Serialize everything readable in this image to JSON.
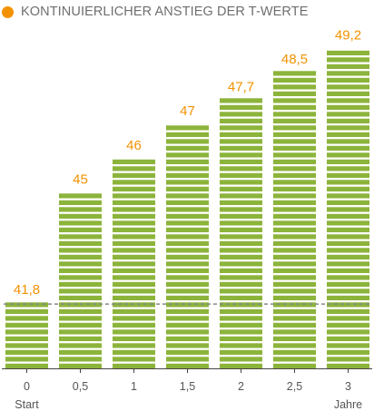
{
  "colors": {
    "bar": "#8cb43b",
    "bar_gap": "#ffffff",
    "accent": "#f39200",
    "baseline": "#888888",
    "axis": "#444444",
    "text": "#555555"
  },
  "legend_dot_color": "#f39200",
  "chart_data": {
    "type": "bar",
    "title": "KONTINUIERLICHER ANSTIEG DER T-WERTE",
    "categories": [
      "0",
      "0,5",
      "1",
      "1,5",
      "2",
      "2,5",
      "3"
    ],
    "values": [
      41.8,
      45,
      46,
      47,
      47.7,
      48.5,
      49.2
    ],
    "value_labels": [
      "41,8",
      "45",
      "46",
      "47",
      "47,7",
      "48,5",
      "49,2"
    ],
    "x_sublabels": {
      "first": "Start",
      "last": "Jahre"
    },
    "ylim": [
      39.8,
      49.5
    ],
    "reference_line": 41.8,
    "grid": false,
    "legend": "none"
  }
}
